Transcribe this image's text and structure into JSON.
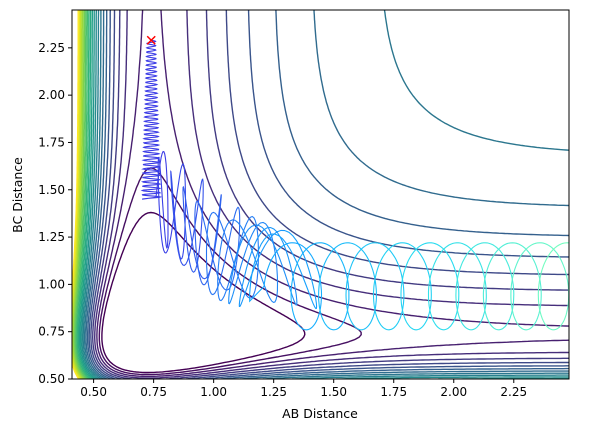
{
  "chart_data": {
    "type": "contour",
    "title": "",
    "xlabel": "AB Distance",
    "ylabel": "BC Distance",
    "xlim": [
      0.41,
      2.48
    ],
    "ylim": [
      0.5,
      2.45
    ],
    "xticks": [
      "0.50",
      "0.75",
      "1.00",
      "1.25",
      "1.50",
      "1.75",
      "2.00",
      "2.25"
    ],
    "yticks": [
      "0.50",
      "0.75",
      "1.00",
      "1.25",
      "1.50",
      "1.75",
      "2.00",
      "2.25"
    ],
    "contour_colormap": "viridis",
    "contour_levels": 24,
    "start_marker": {
      "symbol": "x",
      "color": "#ff0000",
      "x": 0.74,
      "y": 2.29
    },
    "trajectory_colormap": "cool-blue",
    "trajectory_description": "Reactive trajectory: starts near (0.74, 2.29), oscillates in AB while BC decreases to ~1.45, then AB increases while BC oscillates between about 0.76 and 1.23, exiting at AB ~2.45.",
    "trajectory_segments": [
      {
        "from": [
          0.74,
          2.29
        ],
        "to": [
          0.74,
          1.5
        ],
        "color": "#3344ee"
      },
      {
        "from": [
          0.74,
          1.5
        ],
        "to": [
          1.25,
          0.85
        ],
        "color": "#1aa0ff"
      },
      {
        "from": [
          1.25,
          0.85
        ],
        "to": [
          1.9,
          0.85
        ],
        "color": "#33ddee"
      },
      {
        "from": [
          1.9,
          0.85
        ],
        "to": [
          2.45,
          0.85
        ],
        "color": "#66ffcc"
      }
    ]
  }
}
